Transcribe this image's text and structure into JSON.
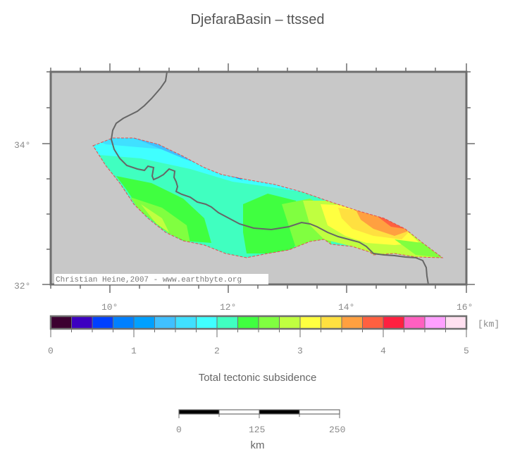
{
  "title": "DjefaraBasin – ttssed",
  "map": {
    "background_color": "#c8c8c8",
    "frame_color": "#6e6e6e",
    "lon_range": [
      9,
      16
    ],
    "lat_range": [
      32,
      35
    ],
    "x_tick_labels": [
      "10°",
      "12°",
      "14°",
      "16°"
    ],
    "y_tick_labels": [
      "34°",
      "32°"
    ],
    "credit": "Christian Heine,2007 - www.earthbyte.org",
    "basin_outline_color": "#e05050",
    "coastline_color": "#666666"
  },
  "colorbar": {
    "unit": "[km]",
    "title": "Total tectonic subsidence",
    "min": 0,
    "max": 5,
    "step": 0.25,
    "tick_labels": [
      "0",
      "1",
      "2",
      "3",
      "4",
      "5"
    ],
    "colors": [
      "#3c0030",
      "#3c00c0",
      "#0040ff",
      "#0080ff",
      "#00a0ff",
      "#40c0ff",
      "#40e0ff",
      "#40ffff",
      "#40ffc0",
      "#40ff40",
      "#80ff40",
      "#c0ff40",
      "#ffff40",
      "#ffe040",
      "#ffa040",
      "#ff6040",
      "#ff2040",
      "#ff60c0",
      "#ffa0ff",
      "#ffe0f0"
    ]
  },
  "scalebar": {
    "tick_labels": [
      "0",
      "125",
      "250"
    ],
    "unit": "km"
  }
}
